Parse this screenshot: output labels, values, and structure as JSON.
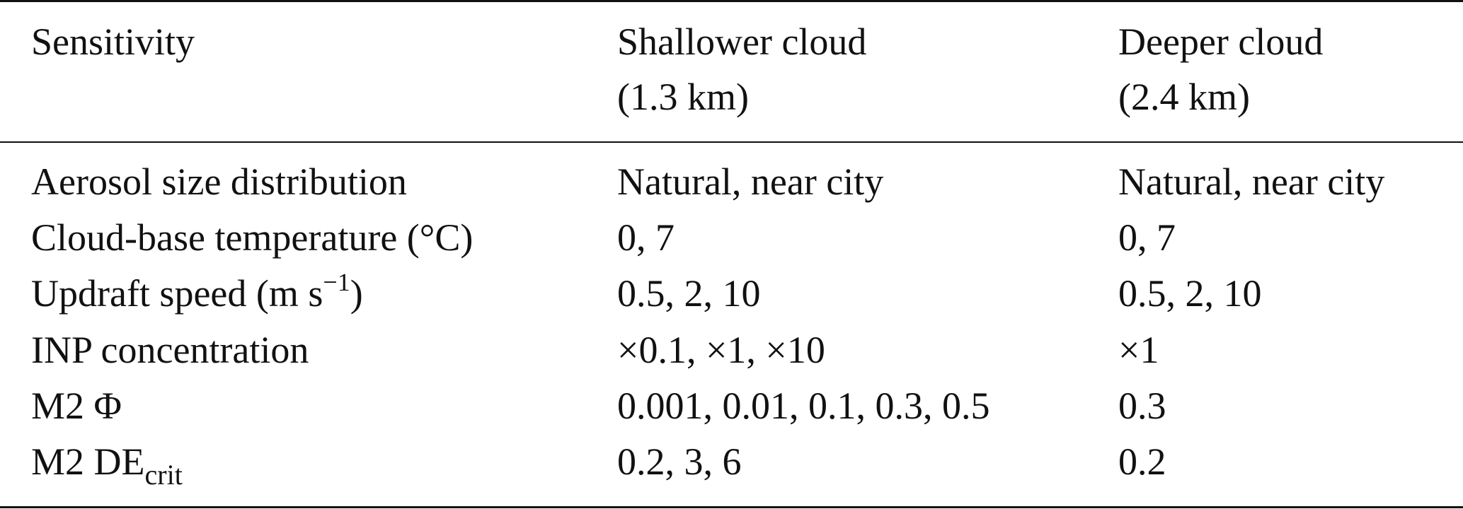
{
  "table": {
    "headers": {
      "col1": "Sensitivity",
      "col2_line1": "Shallower cloud",
      "col2_line2": "(1.3 km)",
      "col3_line1": "Deeper cloud",
      "col3_line2": "(2.4 km)"
    },
    "rows": [
      {
        "label": "Aerosol size distribution",
        "shallow": "Natural, near city",
        "deep": "Natural, near city"
      },
      {
        "label": "Cloud-base temperature (°C)",
        "shallow": "0, 7",
        "deep": "0, 7"
      },
      {
        "label_main": "Updraft speed (m s",
        "label_sup": "−1",
        "label_end": ")",
        "shallow": "0.5, 2, 10",
        "deep": "0.5, 2, 10"
      },
      {
        "label": "INP concentration",
        "shallow": "×0.1, ×1, ×10",
        "deep": "×1"
      },
      {
        "label": "M2 Φ",
        "shallow": "0.001, 0.01, 0.1, 0.3, 0.5",
        "deep": "0.3"
      },
      {
        "label_main": "M2 DE",
        "label_sub": "crit",
        "shallow": "0.2, 3, 6",
        "deep": "0.2"
      }
    ]
  }
}
